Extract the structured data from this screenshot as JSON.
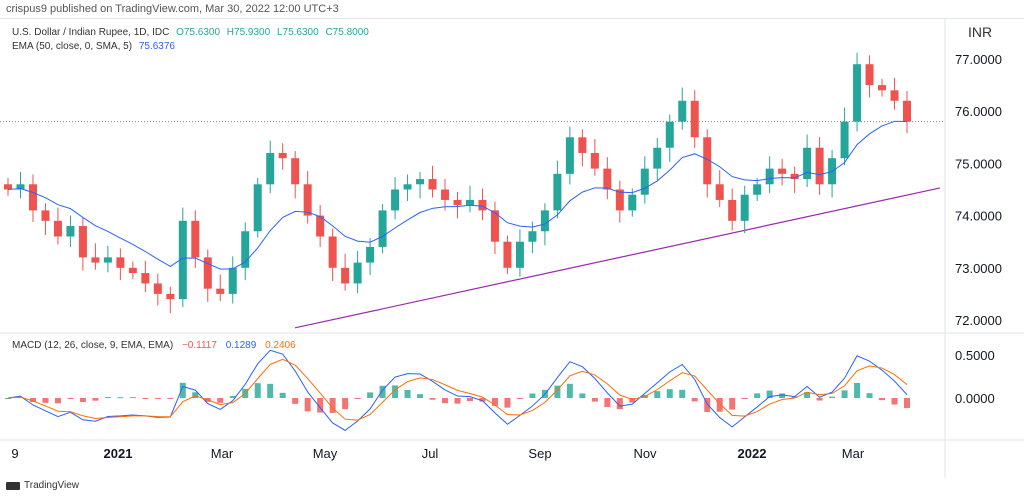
{
  "header": {
    "published": "crispus9 published on TradingView.com, Mar 30, 2022 12:00 UTC+3"
  },
  "legend": {
    "symbol": "U.S. Dollar / Indian Rupee, 1D, IDC",
    "open": "O75.6300",
    "high": "H75.9300",
    "low": "L75.6300",
    "close": "C75.8000",
    "ema_label": "EMA (50, close, 0, SMA, 5)",
    "ema_value": "75.6376"
  },
  "macd_legend": {
    "label": "MACD (12, 26, close, 9, EMA, EMA)",
    "hist": "−0.1117",
    "macd": "0.1289",
    "signal": "0.2406"
  },
  "currency": "INR",
  "footer": {
    "brand": "TradingView"
  },
  "colors": {
    "up": "#26a69a",
    "down": "#ef5350",
    "ema": "#2962ff",
    "signal": "#ff6d00",
    "trendline": "#9c27b0"
  },
  "chart_data": {
    "type": "candlestick",
    "price_ticks": [
      "77.0000",
      "76.0000",
      "75.0000",
      "74.0000",
      "73.0000",
      "72.0000"
    ],
    "price_range": [
      71.75,
      77.35
    ],
    "macd_ticks": [
      "0.5000",
      "0.0000"
    ],
    "time_ticks": [
      "9",
      "2021",
      "Mar",
      "May",
      "Jul",
      "Sep",
      "Nov",
      "2022",
      "Mar"
    ],
    "last_price": 75.8,
    "trendline": {
      "from": 71.85,
      "to": 74.53
    },
    "closes": [
      74.5,
      74.6,
      74.1,
      73.9,
      73.6,
      73.8,
      73.2,
      73.1,
      73.2,
      73.0,
      72.9,
      72.7,
      72.5,
      72.4,
      73.9,
      73.2,
      72.6,
      72.5,
      73.0,
      73.7,
      74.6,
      75.2,
      75.1,
      74.6,
      74.0,
      73.6,
      73.0,
      72.7,
      73.1,
      73.4,
      74.1,
      74.5,
      74.6,
      74.7,
      74.5,
      74.3,
      74.2,
      74.3,
      74.1,
      73.5,
      73.0,
      73.5,
      73.7,
      74.1,
      74.8,
      75.5,
      75.2,
      74.9,
      74.5,
      74.1,
      74.4,
      74.9,
      75.3,
      75.8,
      76.2,
      75.5,
      74.6,
      74.3,
      73.9,
      74.4,
      74.6,
      74.9,
      74.8,
      74.7,
      75.3,
      74.6,
      75.1,
      75.8,
      76.9,
      76.5,
      76.4,
      76.2,
      75.8
    ]
  }
}
